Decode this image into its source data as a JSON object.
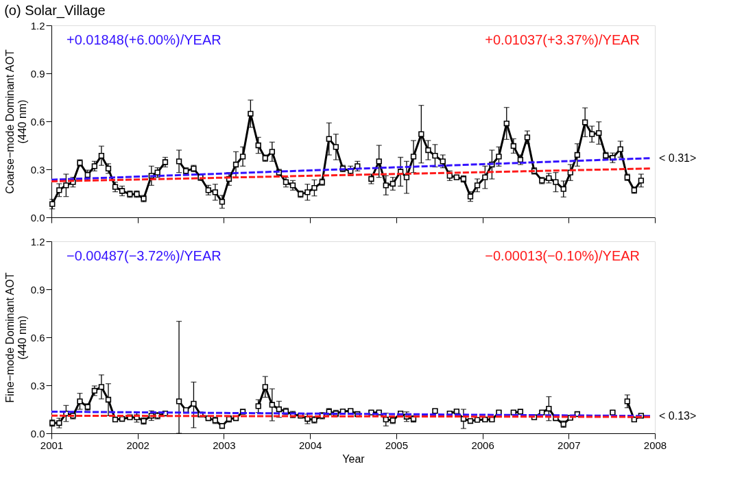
{
  "chart_data": [
    {
      "type": "line",
      "title": "(o) Solar_Village",
      "ylabel": "Coarse−mode Dominant AOT\n(440 nm)",
      "xlim": [
        2001,
        2008
      ],
      "xticks": [
        2001,
        2002,
        2003,
        2004,
        2005,
        2006,
        2007,
        2008
      ],
      "ylim": [
        0,
        1.2
      ],
      "yticks": [
        {
          "value": 0,
          "label": "0.0"
        },
        0.3,
        0.6,
        0.9,
        1.2
      ],
      "grid": false,
      "tick_labels": "y",
      "marker": "square",
      "series": [
        {
          "color": "#000000",
          "x": [
            2001.01,
            2001.09,
            2001.17,
            2001.25,
            2001.33,
            2001.42,
            2001.5,
            2001.58,
            2001.66,
            2001.74,
            2001.82,
            2001.91,
            2001.99,
            2002.07,
            2002.16,
            2002.23,
            2002.32,
            2002.4,
            2002.48,
            2002.56,
            2002.65,
            2002.73,
            2002.82,
            2002.9,
            2002.98,
            2003.06,
            2003.14,
            2003.22,
            2003.31,
            2003.4,
            2003.48,
            2003.56,
            2003.64,
            2003.72,
            2003.8,
            2003.89,
            2003.97,
            2004.05,
            2004.14,
            2004.22,
            2004.3,
            2004.38,
            2004.47,
            2004.55,
            2004.63,
            2004.71,
            2004.8,
            2004.88,
            2004.96,
            2005.05,
            2005.12,
            2005.2,
            2005.29,
            2005.37,
            2005.45,
            2005.54,
            2005.62,
            2005.7,
            2005.78,
            2005.86,
            2005.94,
            2006.03,
            2006.11,
            2006.19,
            2006.28,
            2006.36,
            2006.44,
            2006.52,
            2006.6,
            2006.69,
            2006.77,
            2006.85,
            2006.94,
            2007.02,
            2007.1,
            2007.19,
            2007.27,
            2007.35,
            2007.43,
            2007.51,
            2007.6,
            2007.68,
            2007.76,
            2007.84
          ],
          "values": [
            0.083,
            0.17,
            0.2,
            0.22,
            0.34,
            0.265,
            0.32,
            0.385,
            0.305,
            0.19,
            0.165,
            0.145,
            0.145,
            0.117,
            0.26,
            0.28,
            0.345,
            null,
            0.35,
            0.29,
            0.305,
            0.25,
            0.17,
            0.157,
            0.097,
            0.24,
            0.33,
            0.38,
            0.648,
            0.45,
            0.37,
            0.41,
            0.28,
            0.22,
            0.2,
            0.145,
            0.157,
            0.184,
            0.22,
            0.49,
            0.44,
            0.305,
            0.29,
            0.32,
            null,
            0.24,
            0.35,
            0.2,
            0.21,
            0.285,
            0.25,
            0.38,
            0.52,
            0.42,
            0.385,
            0.35,
            0.26,
            0.25,
            0.24,
            0.13,
            0.2,
            0.25,
            0.33,
            0.38,
            0.587,
            0.446,
            0.36,
            0.5,
            0.29,
            0.23,
            0.245,
            0.22,
            0.177,
            0.28,
            0.39,
            0.594,
            0.52,
            0.527,
            0.386,
            0.372,
            0.426,
            0.25,
            0.17,
            0.23
          ],
          "errors": [
            0.03,
            0.04,
            0.07,
            0.03,
            0.02,
            0.03,
            0.03,
            0.06,
            0.03,
            0.03,
            0.03,
            0.02,
            0.02,
            0.02,
            0.06,
            0.03,
            0.03,
            null,
            0.07,
            0.02,
            0.02,
            0.02,
            0.03,
            0.05,
            0.04,
            0.04,
            0.08,
            0.06,
            0.085,
            0.05,
            0.02,
            0.06,
            0.02,
            0.03,
            0.03,
            0.02,
            0.05,
            0.05,
            0.02,
            0.1,
            0.08,
            0.02,
            0.03,
            0.03,
            null,
            0.03,
            0.1,
            0.06,
            0.04,
            0.09,
            0.1,
            0.1,
            0.18,
            0.06,
            0.07,
            0.04,
            0.03,
            0.01,
            0.02,
            0.03,
            0.04,
            0.07,
            0.09,
            0.06,
            0.1,
            0.045,
            0.03,
            0.04,
            0.02,
            0.02,
            0.03,
            0.06,
            0.05,
            0.05,
            0.07,
            0.09,
            0.05,
            0.07,
            0.02,
            0.03,
            0.05,
            0.02,
            0.02,
            0.04
          ]
        },
        {
          "name": "+0.01848(+6.00%)/YEAR",
          "color": "#3311ff",
          "type": "line",
          "line_style": "dashed",
          "marker": "none",
          "x": [
            2001,
            2007.95
          ],
          "values": [
            0.235,
            0.37
          ]
        },
        {
          "name": "+0.01037(+3.37%)/YEAR",
          "color": "#ff1a1a",
          "type": "line",
          "line_style": "dashed",
          "marker": "none",
          "x": [
            2001,
            2007.95
          ],
          "values": [
            0.225,
            0.305
          ]
        }
      ],
      "annotations": [
        "< 0.31>"
      ]
    },
    {
      "type": "line",
      "xlabel": "Year",
      "ylabel": "Fine−mode Dominant AOT\n(440 nm)",
      "xlim": [
        2001,
        2008
      ],
      "xticks": [
        2001,
        2002,
        2003,
        2004,
        2005,
        2006,
        2007,
        2008
      ],
      "ylim": [
        0,
        1.2
      ],
      "yticks": [
        {
          "value": 0,
          "label": "0.0"
        },
        0.3,
        0.6,
        0.9,
        1.2
      ],
      "grid": false,
      "marker": "square",
      "series": [
        {
          "color": "#000000",
          "x": [
            2001.01,
            2001.09,
            2001.17,
            2001.25,
            2001.33,
            2001.42,
            2001.5,
            2001.58,
            2001.66,
            2001.74,
            2001.82,
            2001.91,
            2001.99,
            2002.07,
            2002.16,
            2002.23,
            2002.32,
            2002.4,
            2002.48,
            2002.56,
            2002.65,
            2002.73,
            2002.82,
            2002.9,
            2002.98,
            2003.06,
            2003.14,
            2003.22,
            2003.31,
            2003.4,
            2003.48,
            2003.56,
            2003.64,
            2003.72,
            2003.8,
            2003.89,
            2003.97,
            2004.05,
            2004.14,
            2004.22,
            2004.3,
            2004.38,
            2004.47,
            2004.55,
            2004.63,
            2004.71,
            2004.8,
            2004.88,
            2004.96,
            2005.05,
            2005.12,
            2005.2,
            2005.29,
            2005.37,
            2005.45,
            2005.54,
            2005.62,
            2005.7,
            2005.78,
            2005.86,
            2005.94,
            2006.03,
            2006.11,
            2006.19,
            2006.28,
            2006.36,
            2006.44,
            2006.52,
            2006.6,
            2006.69,
            2006.77,
            2006.85,
            2006.94,
            2007.02,
            2007.1,
            2007.19,
            2007.27,
            2007.35,
            2007.43,
            2007.51,
            2007.6,
            2007.68,
            2007.76,
            2007.84
          ],
          "values": [
            0.064,
            0.064,
            0.124,
            0.11,
            0.2,
            0.165,
            0.266,
            0.29,
            0.21,
            0.086,
            0.09,
            0.1,
            0.1,
            0.077,
            0.11,
            0.11,
            0.124,
            null,
            0.2,
            0.145,
            0.185,
            0.117,
            0.094,
            0.081,
            0.046,
            0.09,
            0.094,
            0.135,
            null,
            0.17,
            0.29,
            0.178,
            0.15,
            0.137,
            0.117,
            0.11,
            0.09,
            0.084,
            0.11,
            0.135,
            0.124,
            0.137,
            0.14,
            0.12,
            null,
            0.13,
            0.13,
            0.086,
            0.081,
            0.124,
            0.104,
            0.09,
            null,
            null,
            0.14,
            null,
            0.124,
            0.137,
            0.09,
            0.077,
            0.084,
            0.086,
            0.086,
            0.13,
            null,
            0.13,
            0.135,
            null,
            0.1,
            0.13,
            0.154,
            0.094,
            0.057,
            0.097,
            0.12,
            null,
            null,
            null,
            null,
            0.13,
            null,
            0.2,
            0.086,
            0.11
          ],
          "errors": [
            0.02,
            0.03,
            0.05,
            0.02,
            0.05,
            0.02,
            0.03,
            0.075,
            0.1,
            0.01,
            0.01,
            0.01,
            0.03,
            0.02,
            0.03,
            0.02,
            0.01,
            null,
            [
              0.0,
              0.7
            ],
            null,
            [
              0.035,
              0.32
            ],
            0.01,
            0.01,
            0.02,
            0.01,
            0.02,
            0.01,
            0.01,
            null,
            0.04,
            0.065,
            0.1,
            0.05,
            0.02,
            0.02,
            0.01,
            0.03,
            0.02,
            0.02,
            0.02,
            0.02,
            0.01,
            0.01,
            0.01,
            null,
            0.01,
            0.01,
            0.04,
            0.02,
            0.01,
            0.03,
            0.02,
            null,
            null,
            0.01,
            null,
            0.01,
            0.01,
            0.06,
            0.01,
            0.01,
            0.01,
            0.01,
            0.01,
            null,
            0.01,
            0.01,
            null,
            0.01,
            0.01,
            0.075,
            0.01,
            0.02,
            0.01,
            0.01,
            null,
            null,
            null,
            null,
            0.01,
            null,
            0.04,
            0.01,
            0.01
          ]
        },
        {
          "name": "−0.00487(−3.72%)/YEAR",
          "color": "#3311ff",
          "type": "line",
          "line_style": "dashed",
          "marker": "none",
          "x": [
            2001,
            2007.95
          ],
          "values": [
            0.135,
            0.108
          ]
        },
        {
          "name": "−0.00013(−0.10%)/YEAR",
          "color": "#ff1a1a",
          "type": "line",
          "line_style": "dashed",
          "marker": "none",
          "x": [
            2001,
            2007.95
          ],
          "values": [
            0.11,
            0.102
          ]
        }
      ],
      "annotations": [
        "< 0.13>"
      ]
    }
  ]
}
